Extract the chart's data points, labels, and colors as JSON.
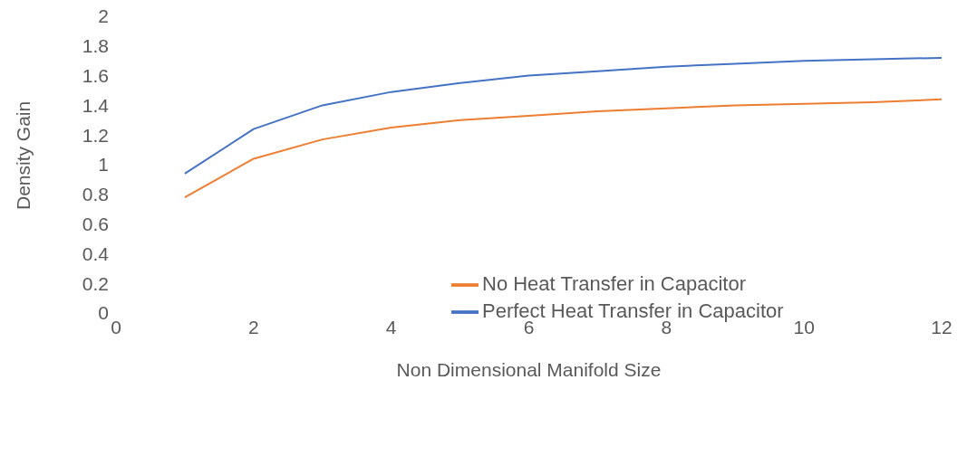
{
  "chart_data": {
    "type": "line",
    "xlabel": "Non Dimensional Manifold Size",
    "ylabel": "Density Gain",
    "x": [
      1,
      2,
      3,
      4,
      5,
      6,
      7,
      8,
      9,
      10,
      11,
      12
    ],
    "series": [
      {
        "name": "Perfect Heat Transfer in Capacitor",
        "color": "#4472c4",
        "values": [
          0.94,
          1.24,
          1.4,
          1.49,
          1.55,
          1.6,
          1.63,
          1.66,
          1.68,
          1.7,
          1.71,
          1.72
        ]
      },
      {
        "name": "No Heat Transfer in Capacitor",
        "color": "#ed7d31",
        "values": [
          0.78,
          1.04,
          1.17,
          1.25,
          1.3,
          1.33,
          1.36,
          1.38,
          1.4,
          1.41,
          1.42,
          1.44
        ]
      }
    ],
    "xlim": [
      0,
      12
    ],
    "xticks": [
      0,
      2,
      4,
      6,
      8,
      10,
      12
    ],
    "ylim": [
      0,
      2
    ],
    "yticks": [
      0,
      0.2,
      0.4,
      0.6,
      0.8,
      1,
      1.2,
      1.4,
      1.6,
      1.8,
      2
    ],
    "grid": false,
    "legend": "bottom right",
    "marker": "none",
    "line_style": "solid"
  }
}
